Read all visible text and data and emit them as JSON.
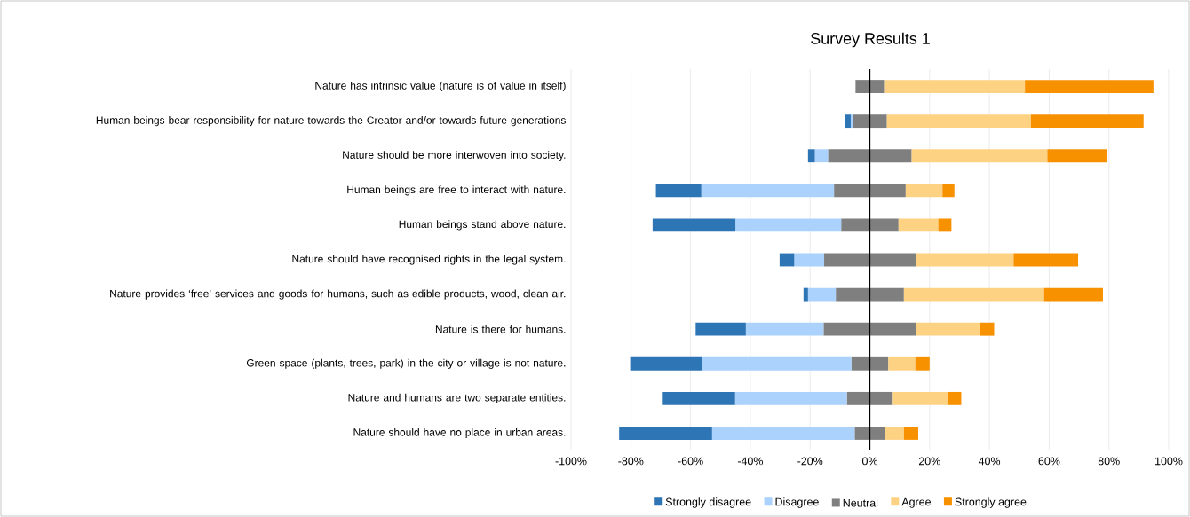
{
  "chart_data": {
    "type": "bar",
    "orientation": "horizontal",
    "stacked": true,
    "title": "Survey Results 1",
    "categories": [
      "Nature has intrinsic value (nature is of value in itself)",
      "Human beings bear responsibility for nature towards the Creator and/or towards future generations",
      "Nature should be more interwoven into society.",
      "Human beings are free to interact with nature.",
      "Human beings stand above nature.",
      "Nature should have recognised rights in the legal system.",
      "Nature provides ‘free’ services and goods for humans, such as edible products, wood, clean air.",
      "Nature is there for humans.",
      "Green space (plants, trees, park) in the city or village is not nature.",
      "Nature and humans are two separate entities.",
      "Nature should have no place in urban areas."
    ],
    "series": [
      {
        "color": "#7f7f7f",
        "values": [
          -4.8,
          -5.7,
          -14.0,
          -12.0,
          -9.6,
          -15.3,
          -11.4,
          -15.5,
          -6.2,
          -7.7,
          -5.1
        ]
      },
      {
        "name": "Disagree",
        "color": "#aad2fc",
        "values": [
          0,
          -0.7,
          -4.4,
          -44.4,
          -35.4,
          -10.0,
          -9.3,
          -26.0,
          -50.1,
          -37.4,
          -47.7
        ]
      },
      {
        "name": "Strongly disagree",
        "color": "#2e75b6",
        "values": [
          0,
          -1.8,
          -2.3,
          -15.2,
          -27.7,
          -4.9,
          -1.5,
          -16.8,
          -23.9,
          -24.2,
          -31.1
        ]
      },
      {
        "name": "Neutral",
        "color": "#7f7f7f",
        "values": [
          4.8,
          5.7,
          14.0,
          12.0,
          9.6,
          15.3,
          11.4,
          15.5,
          6.2,
          7.7,
          5.1
        ]
      },
      {
        "name": "Agree",
        "color": "#fed283",
        "values": [
          47.1,
          48.2,
          45.4,
          12.3,
          13.3,
          32.8,
          46.9,
          21.2,
          9.0,
          18.3,
          6.3
        ]
      },
      {
        "name": "Strongly agree",
        "color": "#f79100",
        "values": [
          43.0,
          37.7,
          19.8,
          4.0,
          4.4,
          21.6,
          19.7,
          4.9,
          4.8,
          4.6,
          4.8
        ]
      }
    ],
    "xlim": [
      -100,
      100
    ],
    "xticks": [
      {
        "value": -100,
        "label": "-100%"
      },
      {
        "value": -80,
        "label": "-80%"
      },
      {
        "value": -60,
        "label": "-60%"
      },
      {
        "value": -40,
        "label": "-40%"
      },
      {
        "value": -20,
        "label": "-20%"
      },
      {
        "value": 0,
        "label": "0%"
      },
      {
        "value": 20,
        "label": "20%"
      },
      {
        "value": 40,
        "label": "40%"
      },
      {
        "value": 60,
        "label": "60%"
      },
      {
        "value": 80,
        "label": "80%"
      },
      {
        "value": 100,
        "label": "100%"
      }
    ],
    "grid": "x",
    "legend": "bottom"
  }
}
